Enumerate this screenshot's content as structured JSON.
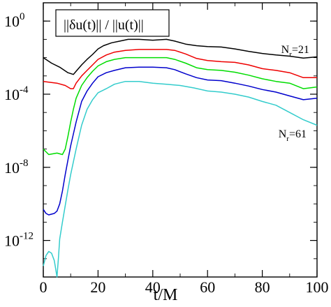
{
  "chart_data": {
    "type": "line",
    "xlabel": "t/M",
    "y_scale": "log",
    "xlim": [
      0,
      100
    ],
    "ylim": [
      1e-14,
      10
    ],
    "x_ticks": [
      0,
      20,
      40,
      60,
      80,
      100
    ],
    "y_ticks": [
      {
        "base": "10",
        "exp": "0",
        "value": 1
      },
      {
        "base": "10",
        "exp": "-4",
        "value": 0.0001
      },
      {
        "base": "10",
        "exp": "-8",
        "value": 1e-08
      },
      {
        "base": "10",
        "exp": "-12",
        "value": 1e-12
      }
    ],
    "legend": {
      "text": "||δu(t)|| / ||u(t)||",
      "placement": "top-left"
    },
    "annotations": [
      {
        "id": "nr21",
        "base": "N",
        "sub": "r",
        "rest": "=21",
        "x": 92,
        "y": 0.025
      },
      {
        "id": "nr61",
        "base": "N",
        "sub": "r",
        "rest": "=61",
        "x": 91,
        "y": 6e-07
      }
    ],
    "series": [
      {
        "color": "#000000",
        "x": [
          0,
          3,
          6,
          9,
          11,
          12,
          14,
          16,
          18,
          20,
          22,
          25,
          28,
          31,
          35,
          40,
          45,
          48,
          52,
          56,
          60,
          65,
          70,
          75,
          80,
          85,
          90,
          95,
          100
        ],
        "y": [
          0.01,
          0.005,
          0.003,
          0.0015,
          0.0012,
          0.0018,
          0.004,
          0.008,
          0.015,
          0.03,
          0.045,
          0.065,
          0.08,
          0.1,
          0.1,
          0.09,
          0.1,
          0.08,
          0.055,
          0.045,
          0.04,
          0.038,
          0.03,
          0.022,
          0.017,
          0.014,
          0.012,
          0.0095,
          0.011
        ]
      },
      {
        "color": "#ee0000",
        "x": [
          0,
          5,
          8,
          10,
          11,
          12,
          14,
          16,
          18,
          20,
          23,
          26,
          30,
          35,
          40,
          45,
          48,
          52,
          56,
          60,
          65,
          70,
          75,
          80,
          85,
          90,
          95,
          100
        ],
        "y": [
          0.0005,
          0.0004,
          0.0003,
          0.0002,
          0.0002,
          0.0004,
          0.001,
          0.002,
          0.004,
          0.008,
          0.014,
          0.02,
          0.025,
          0.028,
          0.028,
          0.028,
          0.025,
          0.016,
          0.009,
          0.007,
          0.006,
          0.0055,
          0.004,
          0.0025,
          0.002,
          0.0015,
          0.0008,
          0.0008
        ]
      },
      {
        "color": "#00dd00",
        "x": [
          0,
          2,
          5,
          7,
          8,
          9,
          10,
          11,
          12,
          14,
          16,
          18,
          20,
          23,
          26,
          30,
          35,
          40,
          45,
          48,
          52,
          56,
          60,
          65,
          70,
          75,
          80,
          85,
          90,
          95,
          100
        ],
        "y": [
          1e-07,
          5e-08,
          6e-08,
          5e-08,
          1e-07,
          5e-07,
          3e-06,
          1.5e-05,
          6e-05,
          0.0003,
          0.0008,
          0.0018,
          0.0035,
          0.006,
          0.008,
          0.01,
          0.01,
          0.01,
          0.01,
          0.008,
          0.005,
          0.0028,
          0.0022,
          0.002,
          0.0016,
          0.0011,
          0.0007,
          0.0005,
          0.0004,
          0.0002,
          0.00025
        ]
      },
      {
        "color": "#0000cc",
        "x": [
          0,
          1,
          2,
          4,
          5,
          6,
          7,
          8,
          9,
          10,
          12,
          14,
          16,
          18,
          20,
          23,
          26,
          30,
          35,
          40,
          45,
          48,
          52,
          56,
          60,
          65,
          70,
          75,
          80,
          85,
          90,
          95,
          100
        ],
        "y": [
          5e-11,
          3e-11,
          2.5e-11,
          3e-11,
          4e-11,
          1e-10,
          5e-10,
          4e-09,
          2.5e-08,
          1.5e-07,
          3e-06,
          4e-05,
          0.00015,
          0.0004,
          0.0009,
          0.0015,
          0.002,
          0.0028,
          0.003,
          0.003,
          0.0028,
          0.0022,
          0.0013,
          0.0008,
          0.0006,
          0.00055,
          0.0004,
          0.00028,
          0.00018,
          0.00013,
          8e-05,
          5e-05,
          6e-05
        ]
      },
      {
        "color": "#33cccc",
        "x": [
          0,
          1,
          2,
          3,
          4,
          4.5,
          5,
          5.5,
          6,
          7,
          8,
          9,
          10,
          12,
          14,
          16,
          18,
          20,
          23,
          26,
          30,
          35,
          40,
          45,
          50,
          55,
          60,
          65,
          70,
          75,
          80,
          85,
          90,
          95,
          100
        ],
        "y": [
          4e-14,
          1.5e-13,
          2.5e-13,
          2e-13,
          8e-14,
          3e-14,
          1e-14,
          1e-13,
          1.2e-12,
          1e-11,
          8e-11,
          6e-10,
          4e-09,
          1e-07,
          2e-06,
          1.5e-05,
          5e-05,
          0.00012,
          0.0002,
          0.00035,
          0.0005,
          0.0005,
          0.0004,
          0.00035,
          0.0003,
          0.00022,
          0.00015,
          0.00013,
          0.0001,
          7e-05,
          4e-05,
          2.5e-05,
          1e-05,
          4e-06,
          2e-06
        ]
      }
    ]
  }
}
